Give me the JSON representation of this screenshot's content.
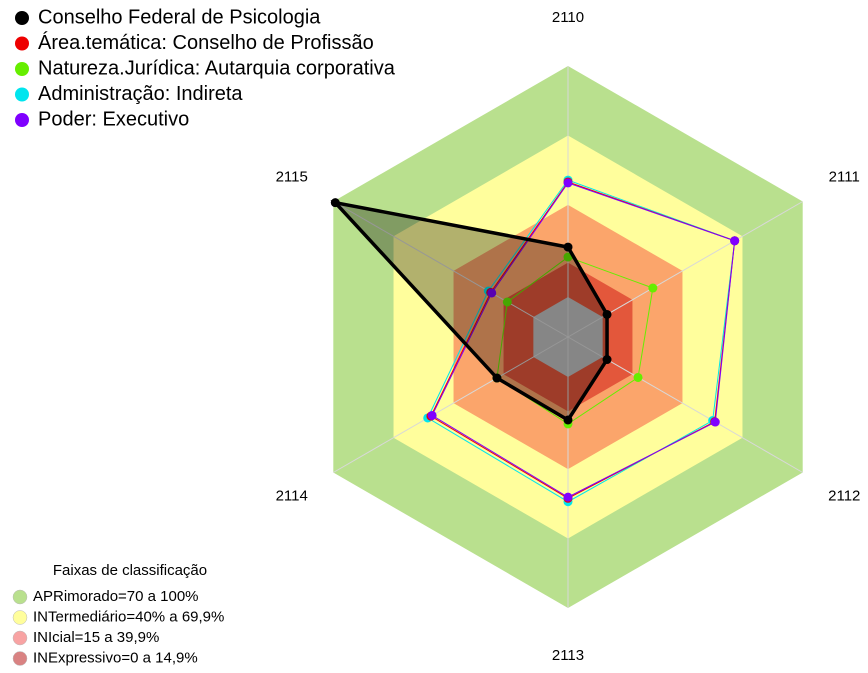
{
  "chart_data": {
    "type": "radar",
    "categories": [
      "2110",
      "2111",
      "2112",
      "2113",
      "2114",
      "2115"
    ],
    "ylim": [
      0,
      100
    ],
    "series": [
      {
        "name": "Natureza.Jurídica: Autarquia corporativa",
        "color": "#66ee00",
        "values": [
          17.3,
          25.1,
          17.7,
          20.3,
          18.2,
          13
        ]
      },
      {
        "name": "Administração: Indireta",
        "color": "#00e5ee",
        "values": [
          50.6,
          66,
          55,
          54,
          52.8,
          22.5
        ]
      },
      {
        "name": "Área.temática: Conselho de Profissão",
        "color": "#ee0000",
        "values": [
          49.8,
          66,
          56,
          52.5,
          51.2,
          21.3
        ]
      },
      {
        "name": "Poder: Executivo",
        "color": "#7f00ff",
        "values": [
          49.4,
          66,
          56.3,
          52,
          50.6,
          20.8
        ]
      },
      {
        "name": "Conselho Federal de Psicologia",
        "color": "#000000",
        "values": [
          21.6,
          2.2,
          2.2,
          18.6,
          18.2,
          99
        ]
      }
    ],
    "legend_order": [
      4,
      2,
      0,
      1,
      3
    ],
    "bands_title": "Faixas de classificação",
    "bands": [
      {
        "name": "APRimorado=70 a 100%",
        "max": 100,
        "color": "#b9e08e",
        "legend_color": "#b9e08e"
      },
      {
        "name": "INTermediário=40% a 69,9%",
        "max": 69.9,
        "color": "#fffe9c",
        "legend_color": "#fffe9c"
      },
      {
        "name": "INIcial=15 a 39,9%",
        "max": 39.9,
        "color": "#fba56b",
        "legend_color": "#f8a3a3"
      },
      {
        "name": "INExpressivo=0 a 14,9%",
        "max": 14.9,
        "color": "#e3573b",
        "legend_color": "#d98282"
      }
    ]
  }
}
